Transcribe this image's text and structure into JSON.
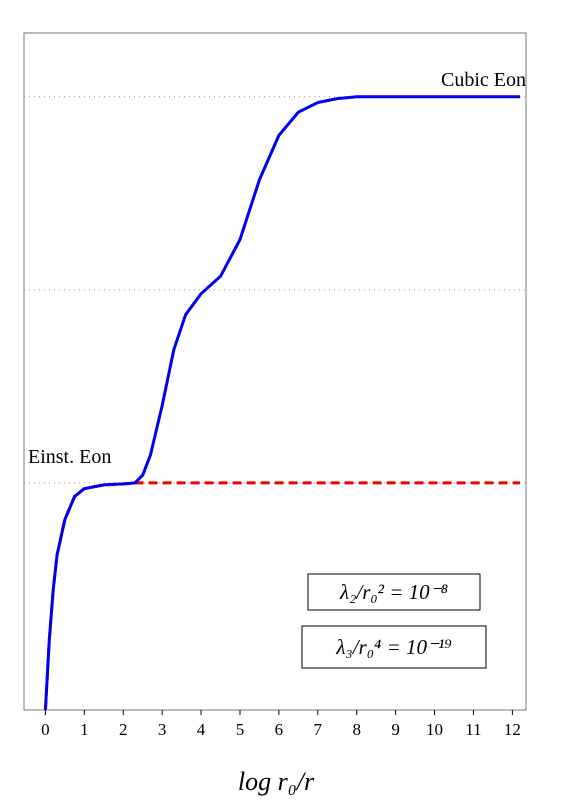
{
  "chart_data": {
    "type": "line",
    "xlabel": "log r₀/r",
    "x": [
      0,
      0.1,
      0.2,
      0.3,
      0.5,
      0.75,
      1,
      1.5,
      2,
      2.3,
      2.5,
      2.7,
      3,
      3.3,
      3.6,
      4,
      4.5,
      5,
      5.5,
      6,
      6.5,
      7,
      7.5,
      8,
      9,
      10,
      11,
      12.2
    ],
    "series": [
      {
        "name": "Cubic Eon",
        "color": "#0000ee",
        "style": "solid",
        "values": [
          -0.176,
          0.187,
          0.446,
          0.627,
          0.81,
          0.93,
          0.97,
          0.99,
          0.995,
          1.0,
          1.04,
          1.145,
          1.4,
          1.69,
          1.87,
          1.98,
          2.07,
          2.26,
          2.57,
          2.8,
          2.92,
          2.97,
          2.99,
          3.0,
          3.0,
          3.0,
          3.0,
          3.0
        ]
      },
      {
        "name": "Einst. Eon",
        "color": "#ee0000",
        "style": "dashed",
        "values": [
          -0.176,
          0.187,
          0.446,
          0.627,
          0.81,
          0.93,
          0.97,
          0.99,
          0.995,
          1.0,
          1.0,
          1.0,
          1.0,
          1.0,
          1.0,
          1.0,
          1.0,
          1.0,
          1.0,
          1.0,
          1.0,
          1.0,
          1.0,
          1.0,
          1.0,
          1.0,
          1.0,
          1.0
        ]
      }
    ],
    "annotations": [
      "λ₂/r₀² = 10⁻⁸",
      "λ₃/r₀⁴ = 10⁻¹⁹"
    ],
    "xlim": [
      -0.55,
      12.35
    ],
    "ylim": [
      -0.176,
      3.33
    ],
    "xticks": [
      0,
      1,
      2,
      3,
      4,
      5,
      6,
      7,
      8,
      9,
      10,
      11,
      12
    ],
    "ygrid": [
      1,
      2,
      3
    ]
  }
}
